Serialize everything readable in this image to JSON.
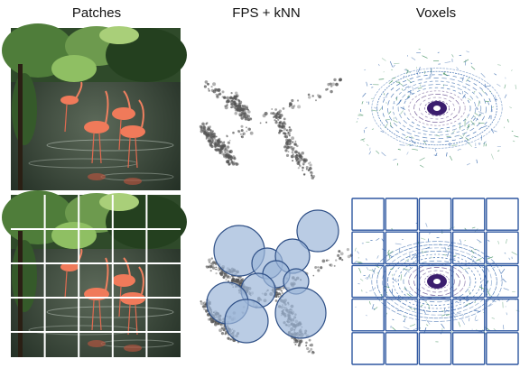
{
  "columns": [
    {
      "title": "Patches"
    },
    {
      "title": "FPS + kNN"
    },
    {
      "title": "Voxels"
    }
  ],
  "colors": {
    "grid_line": "#ffffff",
    "circle_fill": "#9db6d8",
    "circle_stroke": "#2e4f86",
    "voxel_box": "#2e57a0",
    "points": "#555555",
    "lidar_ring": "#3b1d6e",
    "lidar_green": "#3c8c5a",
    "lidar_blue": "#2a5fa8"
  },
  "icons": [
    "flamingo-photo",
    "airplane-point-cloud",
    "lidar-point-cloud"
  ]
}
